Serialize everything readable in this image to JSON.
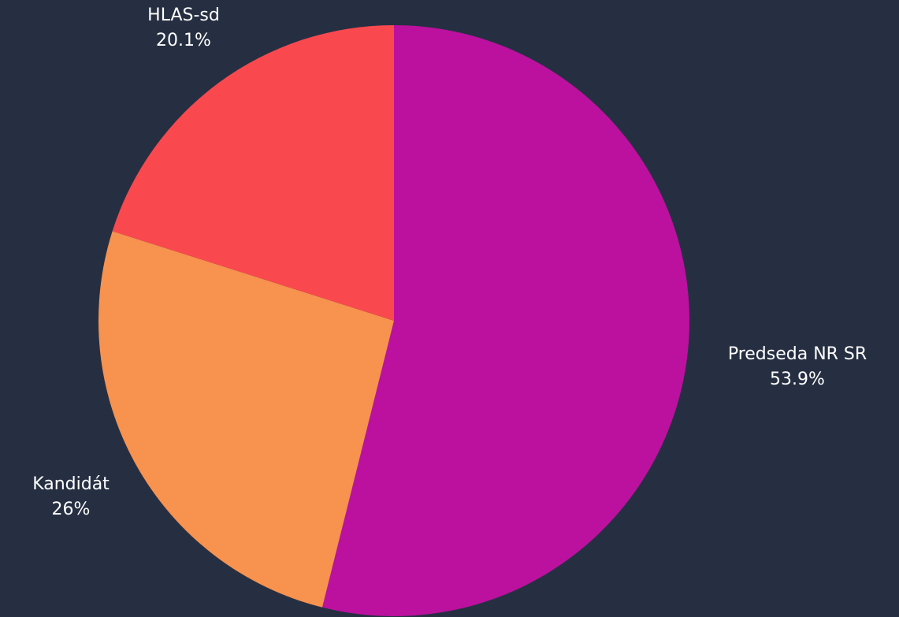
{
  "chart_data": {
    "type": "pie",
    "start_angle_deg": 0,
    "direction": "clockwise",
    "slices": [
      {
        "label": "Predseda NR SR",
        "value": 53.9,
        "value_label": "53.9%",
        "color": "#bb119e"
      },
      {
        "label": "Kandidát",
        "value": 26,
        "value_label": "26%",
        "color": "#f7924f"
      },
      {
        "label": "HLAS-sd",
        "value": 20.1,
        "value_label": "20.1%",
        "color": "#fa494e"
      }
    ]
  },
  "theme": {
    "background": "#262f42",
    "label_color": "#ffffff"
  }
}
